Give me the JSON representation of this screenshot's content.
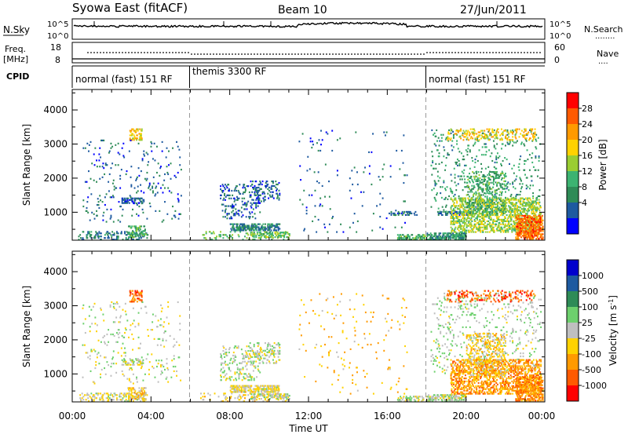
{
  "header": {
    "station": "Syowa East (fitACF)",
    "beam": "Beam 10",
    "date": "27/Jun/2011"
  },
  "strips": {
    "nsky": {
      "label": "N.Sky",
      "ticks": [
        "10^5",
        "10^0"
      ],
      "right_ticks": [
        "10^5",
        "10^0"
      ],
      "right_label": "N.Search"
    },
    "freq": {
      "label": "Freq.",
      "unit": "[MHz]",
      "ticks": [
        "18",
        "8"
      ],
      "right_ticks": [
        "60",
        "0"
      ],
      "right_label": "Nave"
    },
    "cpid": {
      "label": "CPID",
      "segments": [
        {
          "label": "normal (fast) 151 RF",
          "start_hour": 0
        },
        {
          "label": "themis 3300 RF",
          "start_hour": 6
        },
        {
          "label": "normal (fast) 151 RF",
          "start_hour": 18
        }
      ]
    }
  },
  "x_tick_labels": [
    "00:00",
    "04:00",
    "08:00",
    "12:00",
    "16:00",
    "20:00",
    "00:00"
  ],
  "x_axis_label": "Time UT",
  "y_tick_labels": [
    "4000",
    "3000",
    "2000",
    "1000"
  ],
  "y_axis_label": "Slant Range [km]",
  "power_scale": {
    "title": "Power [dB]",
    "labels": [
      "28",
      "24",
      "20",
      "16",
      "12",
      "8",
      "4"
    ],
    "colors": [
      "#ff0000",
      "#ff5a00",
      "#ff9a00",
      "#ffd200",
      "#9acd32",
      "#3cb371",
      "#2e8b57",
      "#1e5aa0",
      "#0000ff"
    ]
  },
  "velocity_scale": {
    "title": "Velocity [m s",
    "title_sup": "-1",
    "title_close": "]",
    "labels": [
      "1000",
      "500",
      "100",
      "25",
      "-25",
      "-100",
      "-500",
      "-1000"
    ],
    "colors": [
      "#0000cd",
      "#1e5aa0",
      "#2e8b57",
      "#6dd06d",
      "#bfbfbf",
      "#ffd200",
      "#ff9a00",
      "#ff5a00",
      "#ff0000"
    ]
  },
  "chart_data": [
    {
      "type": "heatmap",
      "name": "power",
      "title": "Power [dB]",
      "xlabel": "Time UT",
      "ylabel": "Slant Range [km]",
      "xlim": [
        0,
        24
      ],
      "ylim": [
        180,
        4600
      ],
      "scale_range": [
        0,
        32
      ],
      "patches": [
        {
          "t": [
            0.3,
            3.8
          ],
          "r": [
            180,
            450
          ],
          "v": 8,
          "density": 0.22
        },
        {
          "t": [
            2.5,
            3.6
          ],
          "r": [
            1250,
            1400
          ],
          "v": 6,
          "density": 0.4
        },
        {
          "t": [
            2.8,
            3.7
          ],
          "r": [
            250,
            600
          ],
          "v": 12,
          "density": 0.35
        },
        {
          "t": [
            2.9,
            3.5
          ],
          "r": [
            3100,
            3450
          ],
          "v": 20,
          "density": 0.3
        },
        {
          "t": [
            0.5,
            5.5
          ],
          "r": [
            700,
            3100
          ],
          "v": 6,
          "density": 0.03
        },
        {
          "t": [
            6.5,
            11.0
          ],
          "r": [
            180,
            450
          ],
          "v": 14,
          "density": 0.1
        },
        {
          "t": [
            7.5,
            9.5
          ],
          "r": [
            800,
            1800
          ],
          "v": 6,
          "density": 0.12
        },
        {
          "t": [
            8.0,
            10.5
          ],
          "r": [
            450,
            650
          ],
          "v": 8,
          "density": 0.45
        },
        {
          "t": [
            9.0,
            11.0
          ],
          "r": [
            250,
            400
          ],
          "v": 14,
          "density": 0.35
        },
        {
          "t": [
            9.0,
            10.5
          ],
          "r": [
            1300,
            1900
          ],
          "v": 6,
          "density": 0.15
        },
        {
          "t": [
            11.5,
            17.0
          ],
          "r": [
            400,
            3400
          ],
          "v": 6,
          "density": 0.012
        },
        {
          "t": [
            16.0,
            17.5
          ],
          "r": [
            900,
            1000
          ],
          "v": 6,
          "density": 0.3
        },
        {
          "t": [
            16.5,
            18.0
          ],
          "r": [
            180,
            350
          ],
          "v": 12,
          "density": 0.35
        },
        {
          "t": [
            18.0,
            20.0
          ],
          "r": [
            180,
            400
          ],
          "v": 10,
          "density": 0.5
        },
        {
          "t": [
            18.5,
            20.3
          ],
          "r": [
            900,
            1000
          ],
          "v": 6,
          "density": 0.35
        },
        {
          "t": [
            18.2,
            23.8
          ],
          "r": [
            1000,
            3400
          ],
          "v": 10,
          "density": 0.05
        },
        {
          "t": [
            19.2,
            23.8
          ],
          "r": [
            400,
            1400
          ],
          "v": 16,
          "density": 0.32
        },
        {
          "t": [
            20.0,
            22.0
          ],
          "r": [
            900,
            2200
          ],
          "v": 12,
          "density": 0.2
        },
        {
          "t": [
            22.5,
            23.9
          ],
          "r": [
            200,
            900
          ],
          "v": 26,
          "density": 0.45
        },
        {
          "t": [
            19.0,
            23.5
          ],
          "r": [
            3100,
            3450
          ],
          "v": 20,
          "density": 0.15
        }
      ]
    },
    {
      "type": "heatmap",
      "name": "velocity",
      "title": "Velocity [m s-1]",
      "xlabel": "Time UT",
      "ylabel": "Slant Range [km]",
      "xlim": [
        0,
        24
      ],
      "ylim": [
        180,
        4600
      ],
      "scale_range": [
        -1000,
        1000
      ],
      "patches": [
        {
          "t": [
            0.3,
            3.8
          ],
          "r": [
            180,
            450
          ],
          "v": -80,
          "density": 0.22
        },
        {
          "t": [
            2.8,
            3.7
          ],
          "r": [
            250,
            600
          ],
          "v": -200,
          "density": 0.35
        },
        {
          "t": [
            2.5,
            3.6
          ],
          "r": [
            1250,
            1400
          ],
          "v": -20,
          "density": 0.35
        },
        {
          "t": [
            2.9,
            3.5
          ],
          "r": [
            3100,
            3450
          ],
          "v": -600,
          "density": 0.3
        },
        {
          "t": [
            0.5,
            5.5
          ],
          "r": [
            700,
            3100
          ],
          "v": 0,
          "density": 0.03
        },
        {
          "t": [
            6.5,
            11.0
          ],
          "r": [
            180,
            450
          ],
          "v": -150,
          "density": 0.1
        },
        {
          "t": [
            7.5,
            9.5
          ],
          "r": [
            800,
            1800
          ],
          "v": 50,
          "density": 0.12
        },
        {
          "t": [
            8.0,
            10.5
          ],
          "r": [
            450,
            650
          ],
          "v": -100,
          "density": 0.45
        },
        {
          "t": [
            9.0,
            11.0
          ],
          "r": [
            250,
            400
          ],
          "v": 30,
          "density": 0.35
        },
        {
          "t": [
            9.0,
            10.5
          ],
          "r": [
            1300,
            1900
          ],
          "v": 60,
          "density": 0.15
        },
        {
          "t": [
            11.5,
            17.0
          ],
          "r": [
            400,
            3400
          ],
          "v": -300,
          "density": 0.012
        },
        {
          "t": [
            16.5,
            18.0
          ],
          "r": [
            180,
            350
          ],
          "v": 20,
          "density": 0.35
        },
        {
          "t": [
            18.0,
            20.0
          ],
          "r": [
            180,
            400
          ],
          "v": 40,
          "density": 0.5
        },
        {
          "t": [
            18.2,
            23.8
          ],
          "r": [
            1000,
            3400
          ],
          "v": 80,
          "density": 0.05
        },
        {
          "t": [
            19.2,
            23.8
          ],
          "r": [
            400,
            1400
          ],
          "v": -450,
          "density": 0.32
        },
        {
          "t": [
            20.0,
            22.0
          ],
          "r": [
            900,
            2200
          ],
          "v": -200,
          "density": 0.2
        },
        {
          "t": [
            22.5,
            23.9
          ],
          "r": [
            200,
            900
          ],
          "v": -500,
          "density": 0.45
        },
        {
          "t": [
            19.0,
            23.5
          ],
          "r": [
            3100,
            3450
          ],
          "v": -700,
          "density": 0.15
        }
      ]
    }
  ]
}
